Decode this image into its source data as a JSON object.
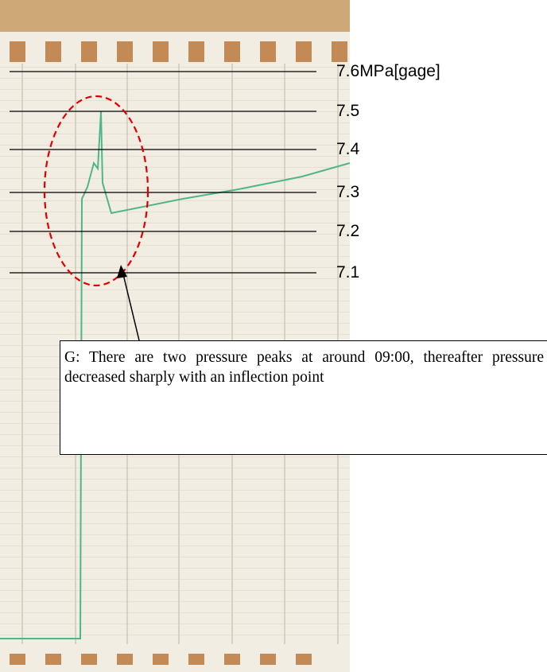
{
  "pressure_labels": [
    "7.6MPa[gage]",
    "7.5",
    "7.4",
    "7.3",
    "7.2",
    "7.1"
  ],
  "annotation": "G: There are two pressure peaks at around 09:00, thereafter pressure decreased sharply with an inflection point"
}
